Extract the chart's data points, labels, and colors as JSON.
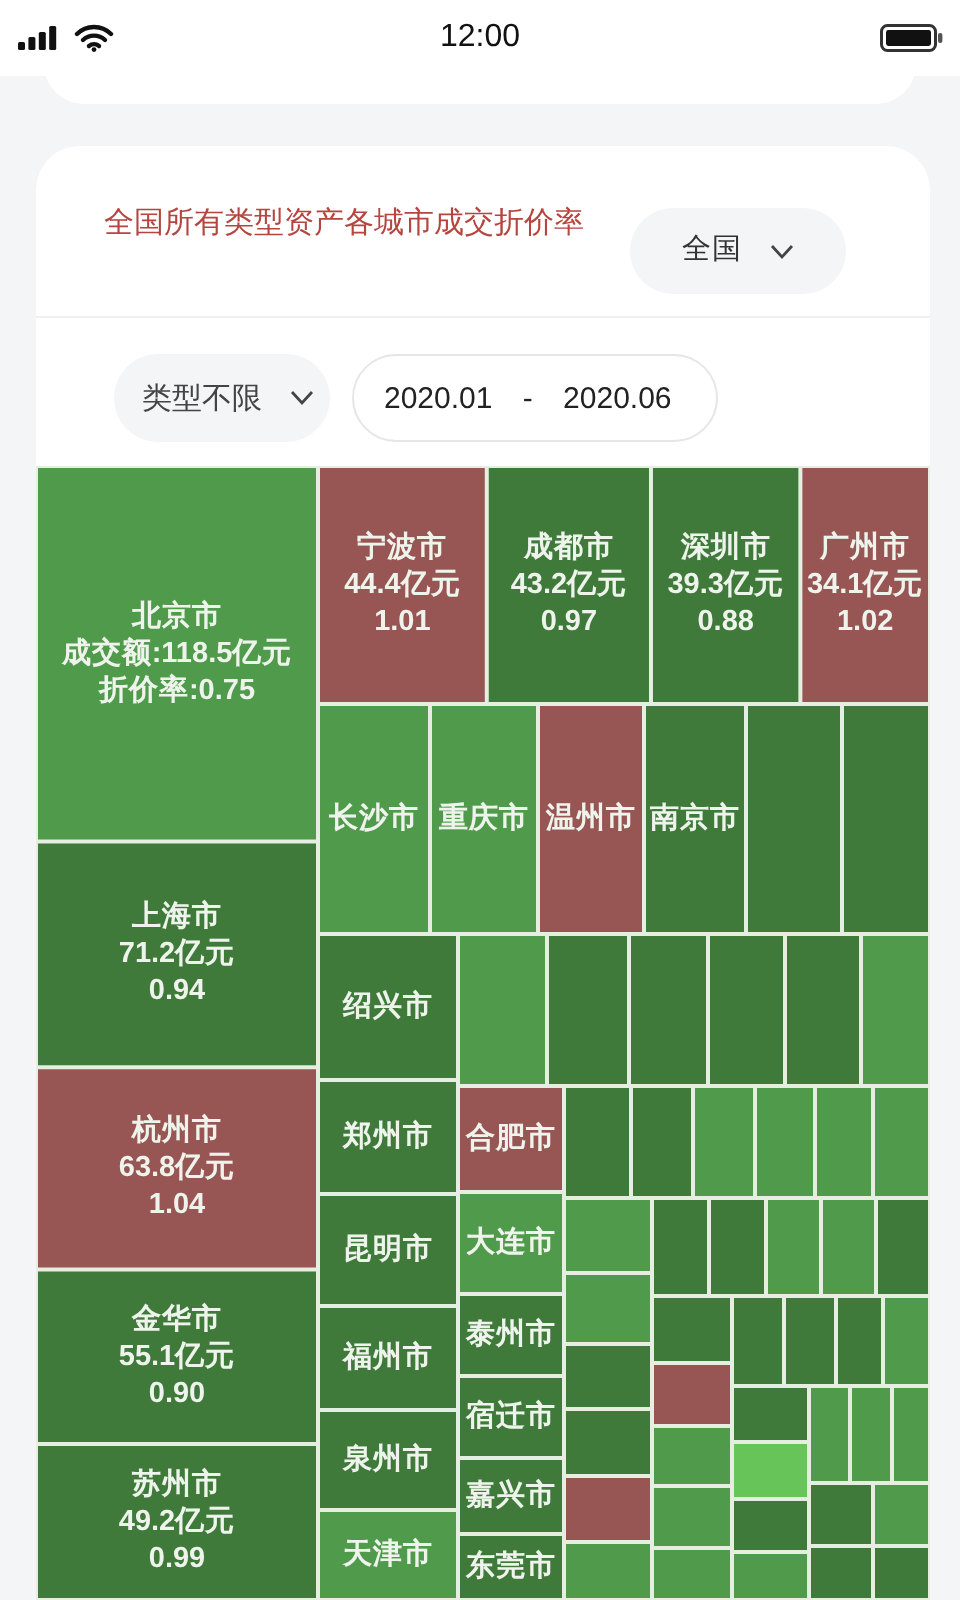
{
  "chart_data": {
    "type": "other",
    "title": "全国所有类型资产各城市成交折价率",
    "annotations": [
      "12:00",
      "全国",
      "类型不限",
      "2020.01 - 2020.06"
    ],
    "categories": [
      "北京市",
      "上海市",
      "杭州市",
      "金华市",
      "苏州市",
      "宁波市",
      "成都市",
      "深圳市",
      "广州市",
      "长沙市",
      "重庆市",
      "温州市",
      "南京市",
      null,
      null,
      "绍兴市",
      "郑州市",
      "昆明市",
      "福州市",
      "泉州市",
      "天津市",
      null,
      null,
      null,
      null,
      null,
      null,
      "合肥市",
      "大连市",
      "泰州市",
      "宿迁市",
      "嘉兴市",
      "东莞市",
      null,
      null,
      null,
      null,
      null,
      null,
      null,
      null,
      null,
      null,
      null,
      null,
      null,
      null,
      null,
      null,
      null,
      null,
      null,
      null,
      null,
      null,
      null,
      null,
      null,
      null,
      null,
      null,
      null,
      null,
      null,
      null,
      null,
      null,
      null,
      null,
      null
    ],
    "series": [
      {
        "colors": [
          "#4f9a4b",
          "#3f7a3b",
          "#975553",
          "#3f7a3b",
          "#3f7a3b",
          "#975553",
          "#3f7a3b",
          "#3f7a3b",
          "#975553",
          "#4f9a4b",
          "#4f9a4b",
          "#975553",
          "#3f7a3b",
          "#3f7a3b",
          "#3f7a3b",
          "#3f7a3b",
          "#3f7a3b",
          "#3f7a3b",
          "#3f7a3b",
          "#3f7a3b",
          "#4f9a4b",
          "#4f9a4b",
          "#3f7a3b",
          "#3f7a3b",
          "#3f7a3b",
          "#3f7a3b",
          "#4f9a4b",
          "#975553",
          "#4f9a4b",
          "#3f7a3b",
          "#3f7a3b",
          "#3f7a3b",
          "#3f7a3b",
          "#3f7a3b",
          "#3f7a3b",
          "#4f9a4b",
          "#4f9a4b",
          "#4f9a4b",
          "#4f9a4b",
          "#4f9a4b",
          "#4f9a4b",
          "#3f7a3b",
          "#3f7a3b",
          "#975553",
          "#4f9a4b",
          "#3f7a3b",
          "#3f7a3b",
          "#4f9a4b",
          "#4f9a4b",
          "#3f7a3b",
          "#3f7a3b",
          "#975553",
          "#4f9a4b",
          "#4f9a4b",
          "#4f9a4b",
          "#3f7a3b",
          "#3f7a3b",
          "#3f7a3b",
          "#4f9a4b",
          "#3f7a3b",
          "#66c458",
          "#3f7a3b",
          "#4f9a4b",
          "#4f9a4b",
          "#4f9a4b",
          "#4f9a4b",
          "#3f7a3b",
          "#3f7a3b",
          "#4f9a4b",
          "#3f7a3b"
        ],
        "values": [
          118.5,
          71.2,
          63.8,
          55.1,
          49.2,
          44.4,
          43.2,
          39.3,
          34.1,
          null,
          null,
          null,
          null,
          null,
          null,
          null,
          null,
          null,
          null,
          null,
          null,
          null,
          null,
          null,
          null,
          null,
          null,
          null,
          null,
          null,
          null,
          null,
          null,
          null,
          null,
          null,
          null,
          null,
          null,
          null,
          null,
          null,
          null,
          null,
          null,
          null,
          null,
          null,
          null,
          null,
          null,
          null,
          null,
          null,
          null,
          null,
          null,
          null,
          null,
          null,
          null,
          null,
          null,
          null,
          null,
          null,
          null,
          null,
          null,
          null
        ],
        "value_labels": [
          "成交额:118.5亿元",
          "71.2亿元",
          "63.8亿元",
          "55.1亿元",
          "49.2亿元",
          "44.4亿元",
          "43.2亿元",
          "39.3亿元",
          "34.1亿元",
          null,
          null,
          null,
          null,
          null,
          null,
          null,
          null,
          null,
          null,
          null,
          null,
          null,
          null,
          null,
          null,
          null,
          null,
          null,
          null,
          null,
          null,
          null,
          null,
          null,
          null,
          null,
          null,
          null,
          null,
          null,
          null,
          null,
          null,
          null,
          null,
          null,
          null,
          null,
          null,
          null,
          null,
          null,
          null,
          null,
          null,
          null,
          null,
          null,
          null,
          null,
          null,
          null,
          null,
          null,
          null,
          null,
          null,
          null,
          null,
          null
        ]
      },
      {
        "values": [
          0.75,
          0.94,
          1.04,
          0.9,
          0.99,
          1.01,
          0.97,
          0.88,
          1.02,
          null,
          null,
          null,
          null,
          null,
          null,
          null,
          null,
          null,
          null,
          null,
          null,
          null,
          null,
          null,
          null,
          null,
          null,
          null,
          null,
          null,
          null,
          null,
          null,
          null,
          null,
          null,
          null,
          null,
          null,
          null,
          null,
          null,
          null,
          null,
          null,
          null,
          null,
          null,
          null,
          null,
          null,
          null,
          null,
          null,
          null,
          null,
          null,
          null,
          null,
          null,
          null,
          null,
          null,
          null,
          null,
          null,
          null,
          null,
          null,
          null
        ],
        "value_labels": [
          "折价率:0.75",
          "0.94",
          "1.04",
          "0.90",
          "0.99",
          "1.01",
          "0.97",
          "0.88",
          "1.02",
          null,
          null,
          null,
          null,
          null,
          null,
          null,
          null,
          null,
          null,
          null,
          null,
          null,
          null,
          null,
          null,
          null,
          null,
          null,
          null,
          null,
          null,
          null,
          null,
          null,
          null,
          null,
          null,
          null,
          null,
          null,
          null,
          null,
          null,
          null,
          null,
          null,
          null,
          null,
          null,
          null,
          null,
          null,
          null,
          null,
          null,
          null,
          null,
          null,
          null,
          null,
          null,
          null,
          null,
          null,
          null,
          null,
          null,
          null,
          null,
          null
        ]
      }
    ]
  }
}
